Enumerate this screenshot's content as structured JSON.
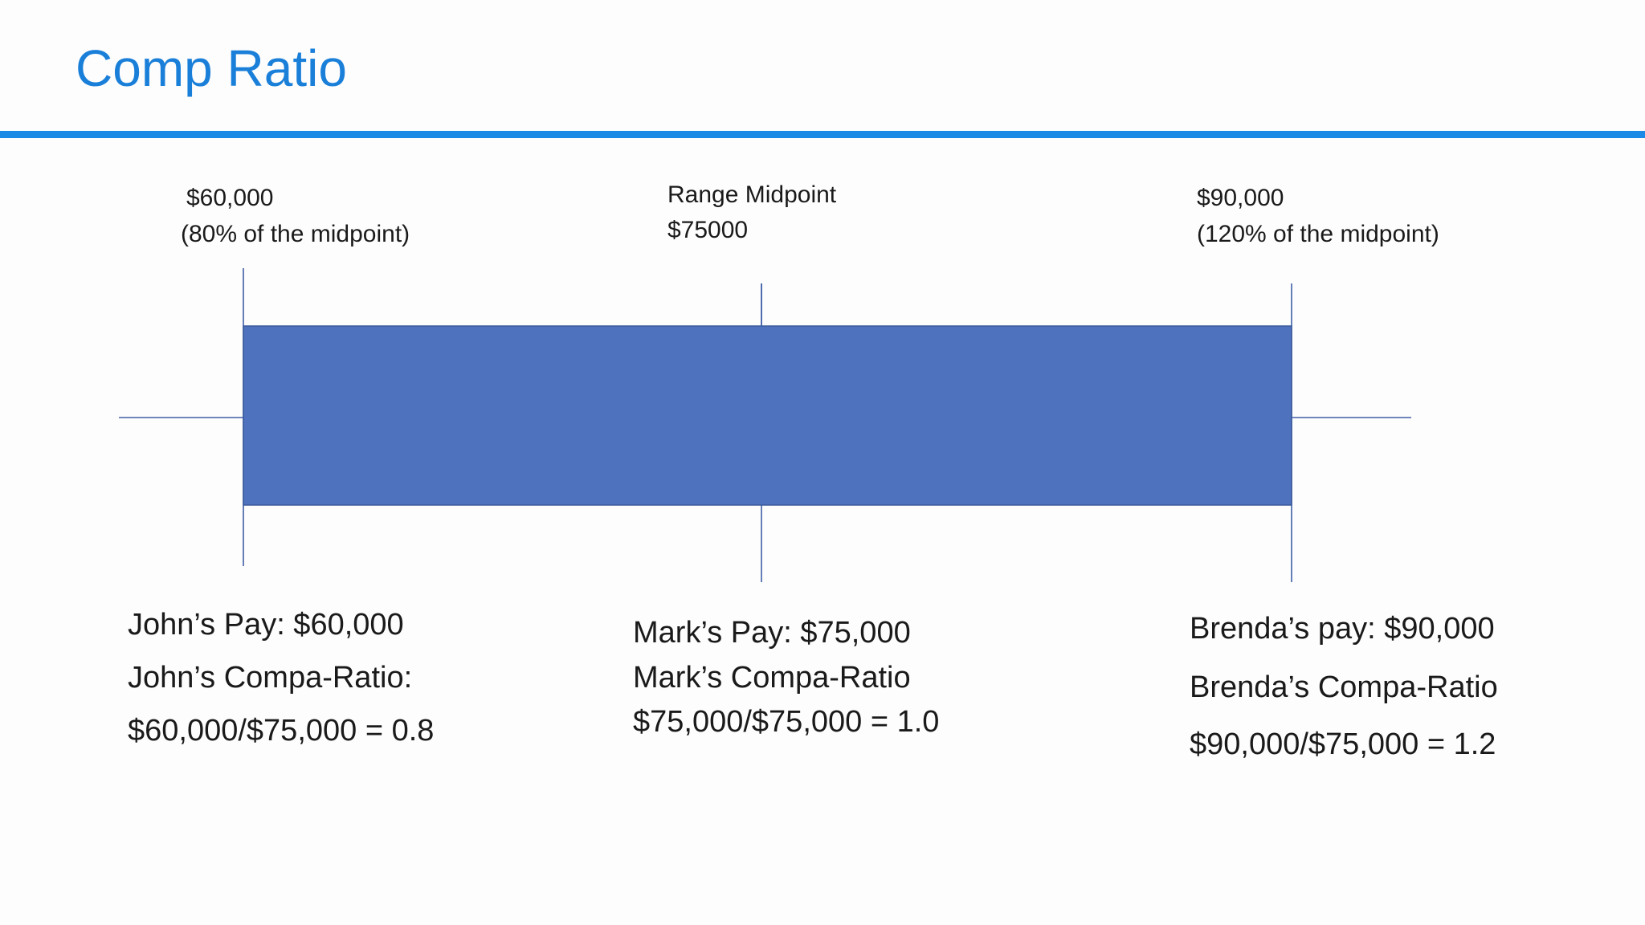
{
  "header": {
    "title": "Comp Ratio"
  },
  "markers": [
    {
      "lines": [
        "$60,000",
        "(80% of the midpoint)"
      ]
    },
    {
      "lines": [
        "Range Midpoint",
        "$75000"
      ]
    },
    {
      "lines": [
        "$90,000",
        "(120% of the midpoint)"
      ]
    }
  ],
  "employees": [
    {
      "lines": [
        "John’s Pay:  $60,000",
        "John’s Compa-Ratio:",
        "$60,000/$75,000  = 0.8"
      ]
    },
    {
      "lines": [
        "Mark’s Pay: $75,000",
        "Mark’s Compa-Ratio",
        "$75,000/$75,000  = 1.0"
      ]
    },
    {
      "lines": [
        "Brenda’s pay: $90,000",
        "Brenda’s Compa-Ratio",
        "$90,000/$75,000  = 1.2"
      ]
    }
  ]
}
